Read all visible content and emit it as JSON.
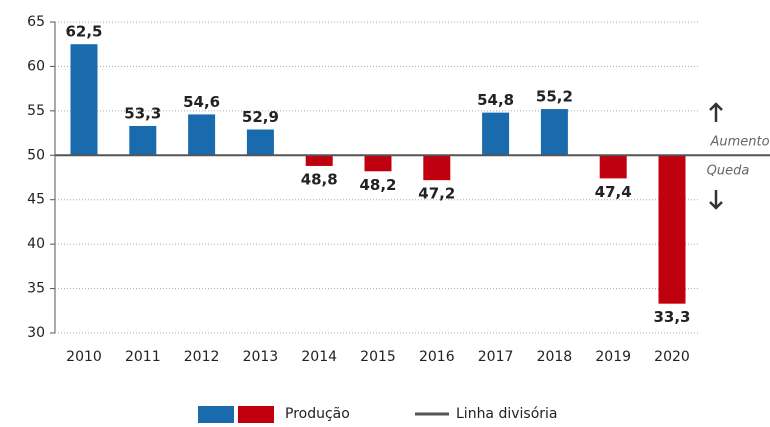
{
  "chart_data": {
    "type": "bar",
    "categories": [
      "2010",
      "2011",
      "2012",
      "2013",
      "2014",
      "2015",
      "2016",
      "2017",
      "2018",
      "2019",
      "2020"
    ],
    "values": [
      62.5,
      53.3,
      54.6,
      52.9,
      48.8,
      48.2,
      47.2,
      54.8,
      55.2,
      47.4,
      33.3
    ],
    "value_labels": [
      "62,5",
      "53,3",
      "54,6",
      "52,9",
      "48,8",
      "48,2",
      "47,2",
      "54,8",
      "55,2",
      "47,4",
      "33,3"
    ],
    "baseline": 50,
    "colors": {
      "above": "#1a6aae",
      "below": "#c1000f",
      "baseline": "#555555"
    },
    "ylim": [
      30,
      65
    ],
    "yticks": [
      30,
      35,
      40,
      45,
      50,
      55,
      60,
      65
    ],
    "grid": true,
    "legend": [
      "Produção",
      "Linha divisória"
    ],
    "annotations": [
      "Aumento",
      "Queda"
    ]
  }
}
